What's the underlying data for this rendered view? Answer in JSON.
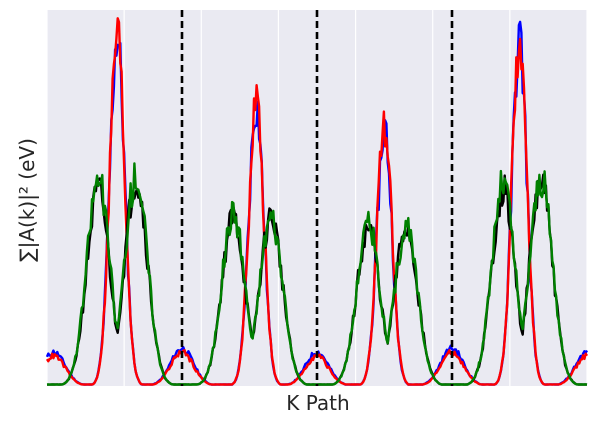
{
  "chart_data": {
    "type": "line",
    "title": "",
    "xlabel": "K Path",
    "ylabel": "∑|A(k)|² (eV)",
    "xlim": [
      0,
      4
    ],
    "ylim": [
      0,
      1
    ],
    "grid": true,
    "background": "#EAEAF2",
    "vlines": {
      "x": [
        1,
        2,
        3
      ],
      "style": "dashed",
      "color": "#000000"
    },
    "series": [
      {
        "color": "#0000FF",
        "peaks": [
          [
            0.05,
            0.09
          ],
          [
            0.52,
            0.93
          ],
          [
            1.0,
            0.1
          ],
          [
            1.55,
            0.75
          ],
          [
            2.0,
            0.09
          ],
          [
            2.5,
            0.69
          ],
          [
            3.0,
            0.1
          ],
          [
            3.5,
            0.92
          ],
          [
            4.0,
            0.09
          ]
        ]
      },
      {
        "color": "#FF0000",
        "peaks": [
          [
            0.05,
            0.08
          ],
          [
            0.52,
            0.94
          ],
          [
            1.0,
            0.09
          ],
          [
            1.55,
            0.76
          ],
          [
            2.0,
            0.08
          ],
          [
            2.5,
            0.7
          ],
          [
            3.0,
            0.09
          ],
          [
            3.5,
            0.93
          ],
          [
            4.0,
            0.08
          ]
        ]
      },
      {
        "color": "#000000",
        "peaks": [
          [
            0.38,
            0.52
          ],
          [
            0.66,
            0.55
          ],
          [
            1.38,
            0.45
          ],
          [
            1.66,
            0.45
          ],
          [
            2.38,
            0.42
          ],
          [
            2.66,
            0.42
          ],
          [
            3.38,
            0.52
          ],
          [
            3.66,
            0.54
          ]
        ]
      },
      {
        "color": "#008000",
        "peaks": [
          [
            0.38,
            0.55
          ],
          [
            0.66,
            0.56
          ],
          [
            1.38,
            0.46
          ],
          [
            1.66,
            0.45
          ],
          [
            2.38,
            0.43
          ],
          [
            2.66,
            0.42
          ],
          [
            3.38,
            0.54
          ],
          [
            3.66,
            0.55
          ]
        ]
      }
    ]
  }
}
